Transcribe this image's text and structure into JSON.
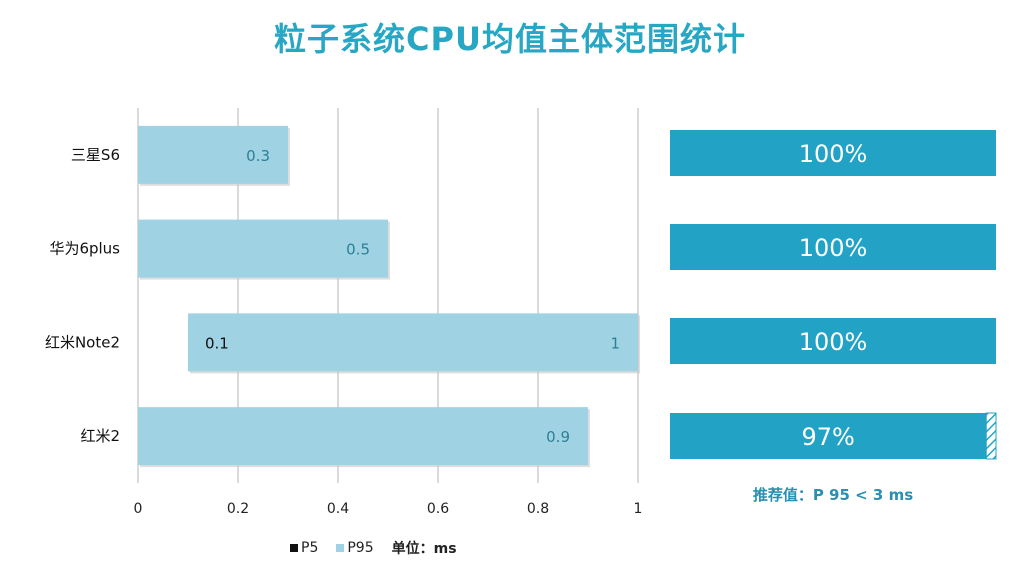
{
  "title": "粒子系统CPU均值主体范围统计",
  "colors": {
    "title": "#27a7c4",
    "p95_bar": "#9fd3e3",
    "p95_label": "#2d7f96",
    "p5_label": "#111111",
    "pct_bar": "#22a3c6",
    "pct_text": "#ffffff",
    "grid": "#b5b5b5"
  },
  "chart_data": [
    {
      "type": "bar",
      "orientation": "horizontal",
      "categories": [
        "三星S6",
        "华为6plus",
        "红米Note2",
        "红米2"
      ],
      "series": [
        {
          "name": "P5",
          "values": [
            0,
            0,
            0.1,
            0
          ],
          "data_labels": [
            "",
            "",
            "0.1",
            ""
          ]
        },
        {
          "name": "P95",
          "values": [
            0.3,
            0.5,
            1,
            0.9
          ],
          "data_labels": [
            "0.3",
            "0.5",
            "1",
            "0.9"
          ]
        }
      ],
      "xlim": [
        0,
        1
      ],
      "xticks": [
        "0",
        "0.2",
        "0.4",
        "0.6",
        "0.8",
        "1"
      ],
      "grid": true,
      "legend": "bottom",
      "unit_label": "单位：ms"
    },
    {
      "type": "bar",
      "orientation": "horizontal",
      "values": [
        100,
        100,
        100,
        97
      ],
      "data_labels": [
        "100%",
        "100%",
        "100%",
        "97%"
      ],
      "xlim": [
        0,
        100
      ],
      "note": "推荐值：P 95 < 3 ms"
    }
  ]
}
